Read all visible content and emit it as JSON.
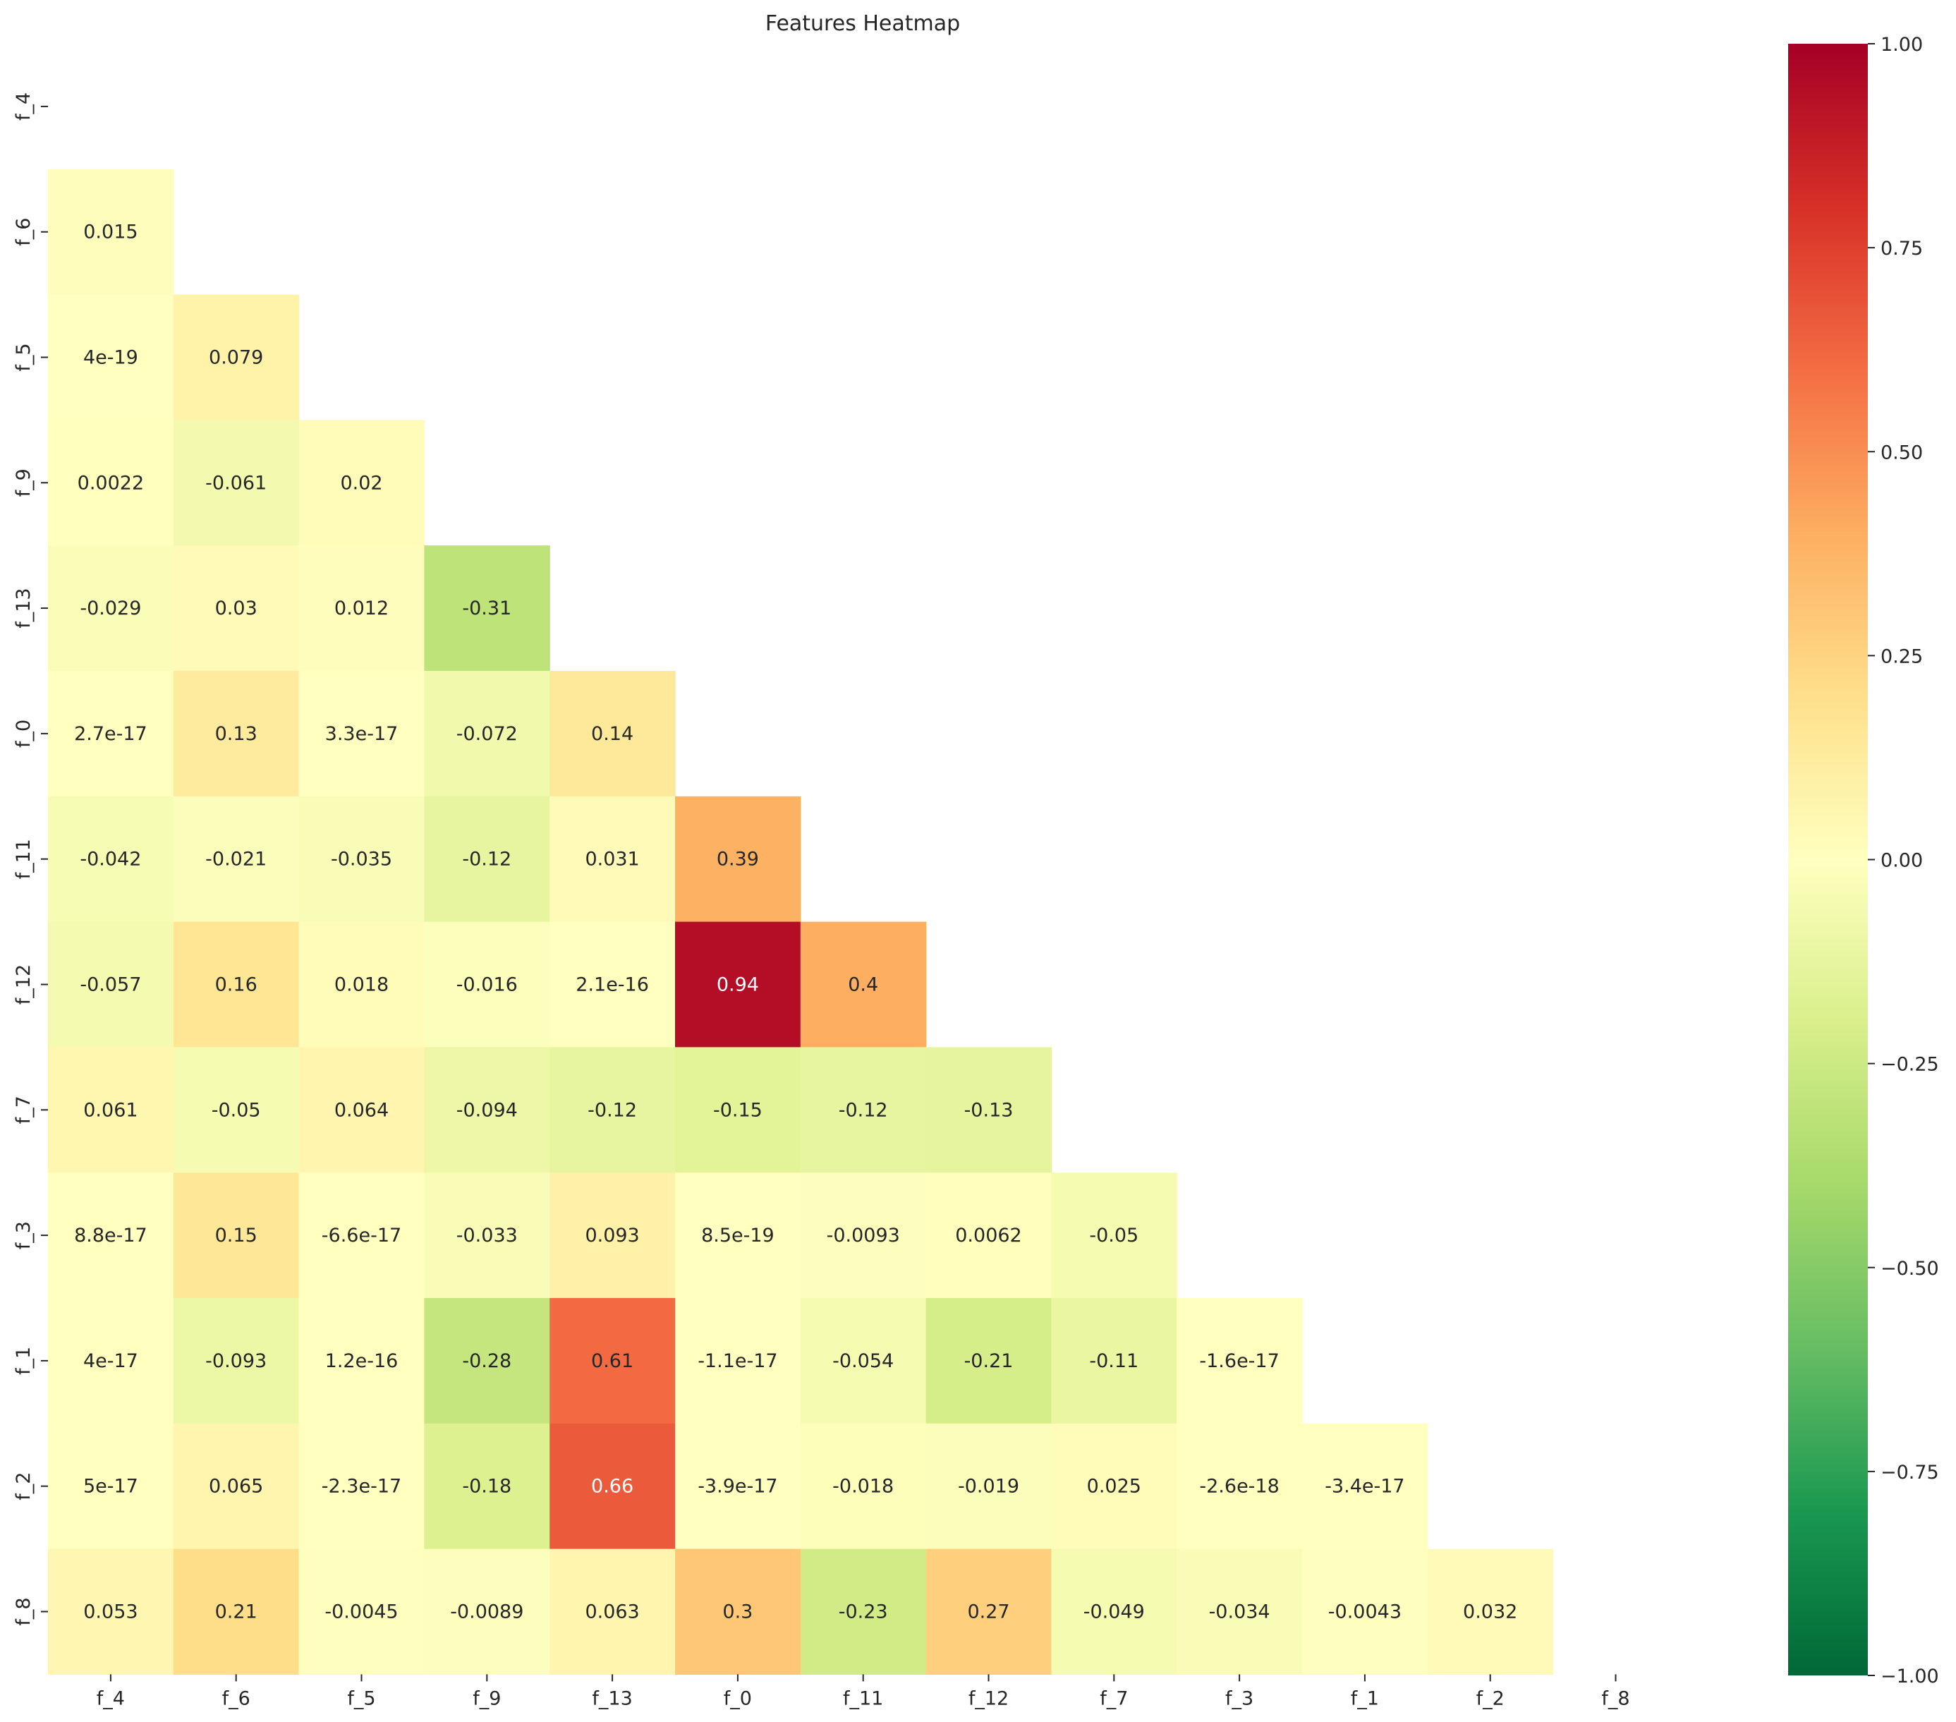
{
  "chart_data": {
    "type": "heatmap",
    "title": "Features Heatmap",
    "mask": "upper-triangle-including-diagonal",
    "colormap": "RdYlGn_r",
    "vmin": -1.0,
    "vmax": 1.0,
    "row_labels": [
      "f_4",
      "f_6",
      "f_5",
      "f_9",
      "f_13",
      "f_0",
      "f_11",
      "f_12",
      "f_7",
      "f_3",
      "f_1",
      "f_2",
      "f_8"
    ],
    "col_labels": [
      "f_4",
      "f_6",
      "f_5",
      "f_9",
      "f_13",
      "f_0",
      "f_11",
      "f_12",
      "f_7",
      "f_3",
      "f_1",
      "f_2",
      "f_8"
    ],
    "values": [
      [],
      [
        "0.015"
      ],
      [
        "4e-19",
        "0.079"
      ],
      [
        "0.0022",
        "-0.061",
        "0.02"
      ],
      [
        "-0.029",
        "0.03",
        "0.012",
        "-0.31"
      ],
      [
        "2.7e-17",
        "0.13",
        "3.3e-17",
        "-0.072",
        "0.14"
      ],
      [
        "-0.042",
        "-0.021",
        "-0.035",
        "-0.12",
        "0.031",
        "0.39"
      ],
      [
        "-0.057",
        "0.16",
        "0.018",
        "-0.016",
        "2.1e-16",
        "0.94",
        "0.4"
      ],
      [
        "0.061",
        "-0.05",
        "0.064",
        "-0.094",
        "-0.12",
        "-0.15",
        "-0.12",
        "-0.13"
      ],
      [
        "8.8e-17",
        "0.15",
        "-6.6e-17",
        "-0.033",
        "0.093",
        "8.5e-19",
        "-0.0093",
        "0.0062",
        "-0.05"
      ],
      [
        "4e-17",
        "-0.093",
        "1.2e-16",
        "-0.28",
        "0.61",
        "-1.1e-17",
        "-0.054",
        "-0.21",
        "-0.11",
        "-1.6e-17"
      ],
      [
        "5e-17",
        "0.065",
        "-2.3e-17",
        "-0.18",
        "0.66",
        "-3.9e-17",
        "-0.018",
        "-0.019",
        "0.025",
        "-2.6e-18",
        "-3.4e-17"
      ],
      [
        "0.053",
        "0.21",
        "-0.0045",
        "-0.0089",
        "0.063",
        "0.3",
        "-0.23",
        "0.27",
        "-0.049",
        "-0.034",
        "-0.0043",
        "0.032"
      ]
    ],
    "colorbar_ticks": [
      "1.00",
      "0.75",
      "0.50",
      "0.25",
      "0.00",
      "−0.25",
      "−0.50",
      "−0.75",
      "−1.00"
    ],
    "colorbar_tick_values": [
      1.0,
      0.75,
      0.5,
      0.25,
      0.0,
      -0.25,
      -0.5,
      -0.75,
      -1.0
    ],
    "grid": false,
    "legend": "colorbar-right"
  }
}
